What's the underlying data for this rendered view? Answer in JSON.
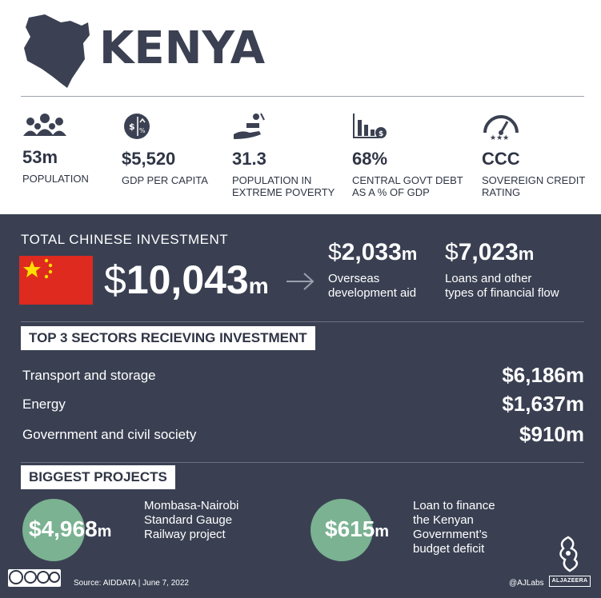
{
  "title": "KENYA",
  "stats": [
    {
      "icon": "population-icon",
      "value": "53m",
      "label": "POPULATION"
    },
    {
      "icon": "gdp-icon",
      "value": "$5,520",
      "label": "GDP PER CAPITA"
    },
    {
      "icon": "poverty-icon",
      "value": "31.3",
      "label": "POPULATION IN EXTREME POVERTY"
    },
    {
      "icon": "debt-icon",
      "value": "68%",
      "label": "CENTRAL GOVT DEBT AS A % OF GDP"
    },
    {
      "icon": "credit-gauge-icon",
      "value": "CCC",
      "label": "SOVEREIGN CREDIT RATING"
    }
  ],
  "investment": {
    "label": "TOTAL CHINESE INVESTMENT",
    "total": {
      "currency": "$",
      "number": "10,043",
      "unit": "m"
    },
    "aid": {
      "currency": "$",
      "number": "2,033",
      "unit": "m",
      "desc_line1": "Overseas",
      "desc_line2": "development aid"
    },
    "loans": {
      "currency": "$",
      "number": "7,023",
      "unit": "m",
      "desc_line1": "Loans and other",
      "desc_line2": "types of financial flow"
    }
  },
  "sectors": {
    "title": "TOP 3 SECTORS RECIEVING INVESTMENT",
    "items": [
      {
        "name": "Transport and storage",
        "amount": "$6,186m"
      },
      {
        "name": "Energy",
        "amount": "$1,637m"
      },
      {
        "name": "Government and civil society",
        "amount": "$910m"
      }
    ]
  },
  "projects": {
    "title": "BIGGEST PROJECTS",
    "items": [
      {
        "number": "$4,968",
        "unit": "m",
        "lines": [
          "Mombasa-Nairobi",
          "Standard Gauge",
          "Railway project"
        ]
      },
      {
        "number": "$615",
        "unit": "m",
        "lines": [
          "Loan to finance",
          "the Kenyan",
          "Government’s",
          "budget deficit"
        ]
      }
    ]
  },
  "footer": {
    "source": "Source: AIDDATA  |  June 7, 2022",
    "handle": "@AJLabs",
    "brand": "ALJAZEERA"
  },
  "colors": {
    "panel": "#3a4052",
    "accent_green": "#7ab292",
    "flag_red": "#de2a1f",
    "flag_yellow": "#ffde00"
  }
}
